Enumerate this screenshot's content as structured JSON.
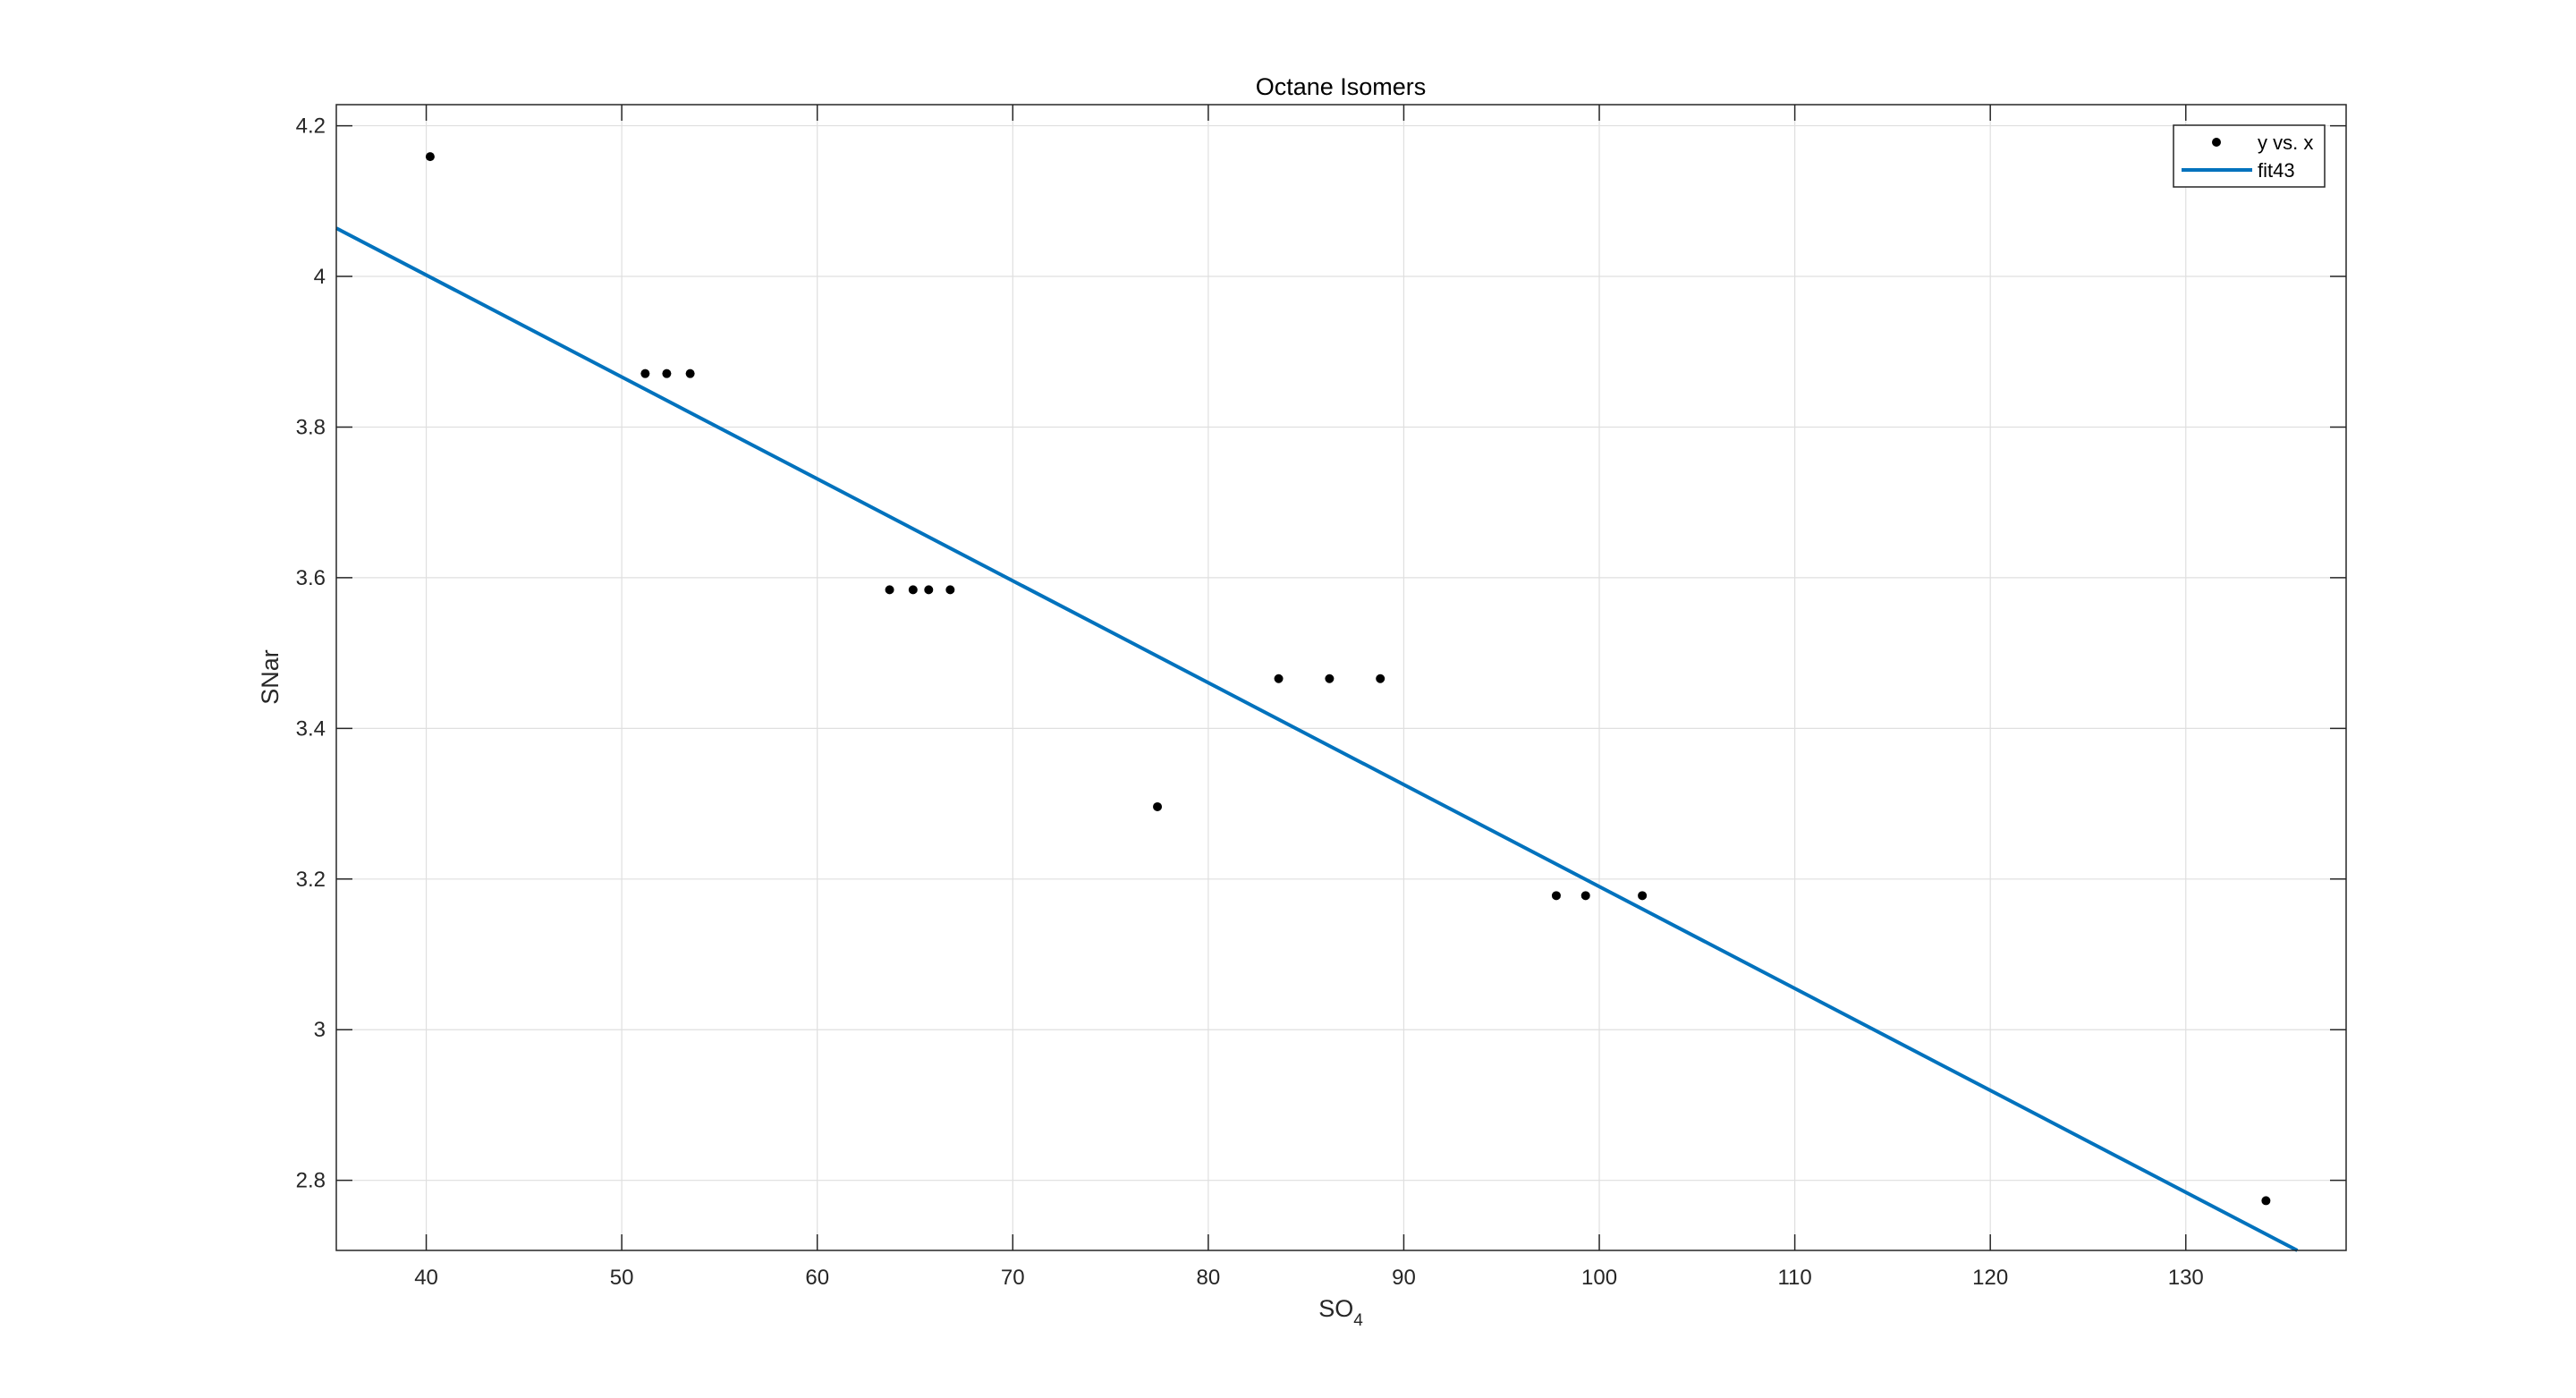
{
  "chart_data": {
    "type": "scatter",
    "title": "Octane Isomers",
    "xlabel_main": "SO",
    "xlabel_sub": "4",
    "ylabel": "SNar",
    "xlim": [
      35.4,
      138.2
    ],
    "ylim": [
      2.707,
      4.228
    ],
    "xticks": [
      40,
      50,
      60,
      70,
      80,
      90,
      100,
      110,
      120,
      130
    ],
    "xtick_labels": [
      "40",
      "50",
      "60",
      "70",
      "80",
      "90",
      "100",
      "110",
      "120",
      "130"
    ],
    "yticks": [
      2.8,
      3,
      3.2,
      3.4,
      3.6,
      3.8,
      4,
      4.2
    ],
    "ytick_labels": [
      "2.8",
      "3",
      "3.2",
      "3.4",
      "3.6",
      "3.8",
      "4",
      "4.2"
    ],
    "grid": true,
    "legend_position": "top-right",
    "series": [
      {
        "name": "y vs. x",
        "kind": "points",
        "color": "#000000",
        "x": [
          40.2,
          51.2,
          52.3,
          53.5,
          63.7,
          64.9,
          65.7,
          66.8,
          77.4,
          83.6,
          86.2,
          88.8,
          97.8,
          99.3,
          102.2,
          134.1
        ],
        "y": [
          4.159,
          3.871,
          3.871,
          3.871,
          3.584,
          3.584,
          3.584,
          3.584,
          3.296,
          3.466,
          3.466,
          3.466,
          3.178,
          3.178,
          3.178,
          2.773
        ]
      },
      {
        "name": "fit43",
        "kind": "line",
        "color": "#0072BD",
        "x": [
          35.4,
          135.7
        ],
        "y": [
          4.064,
          2.707
        ]
      }
    ]
  }
}
